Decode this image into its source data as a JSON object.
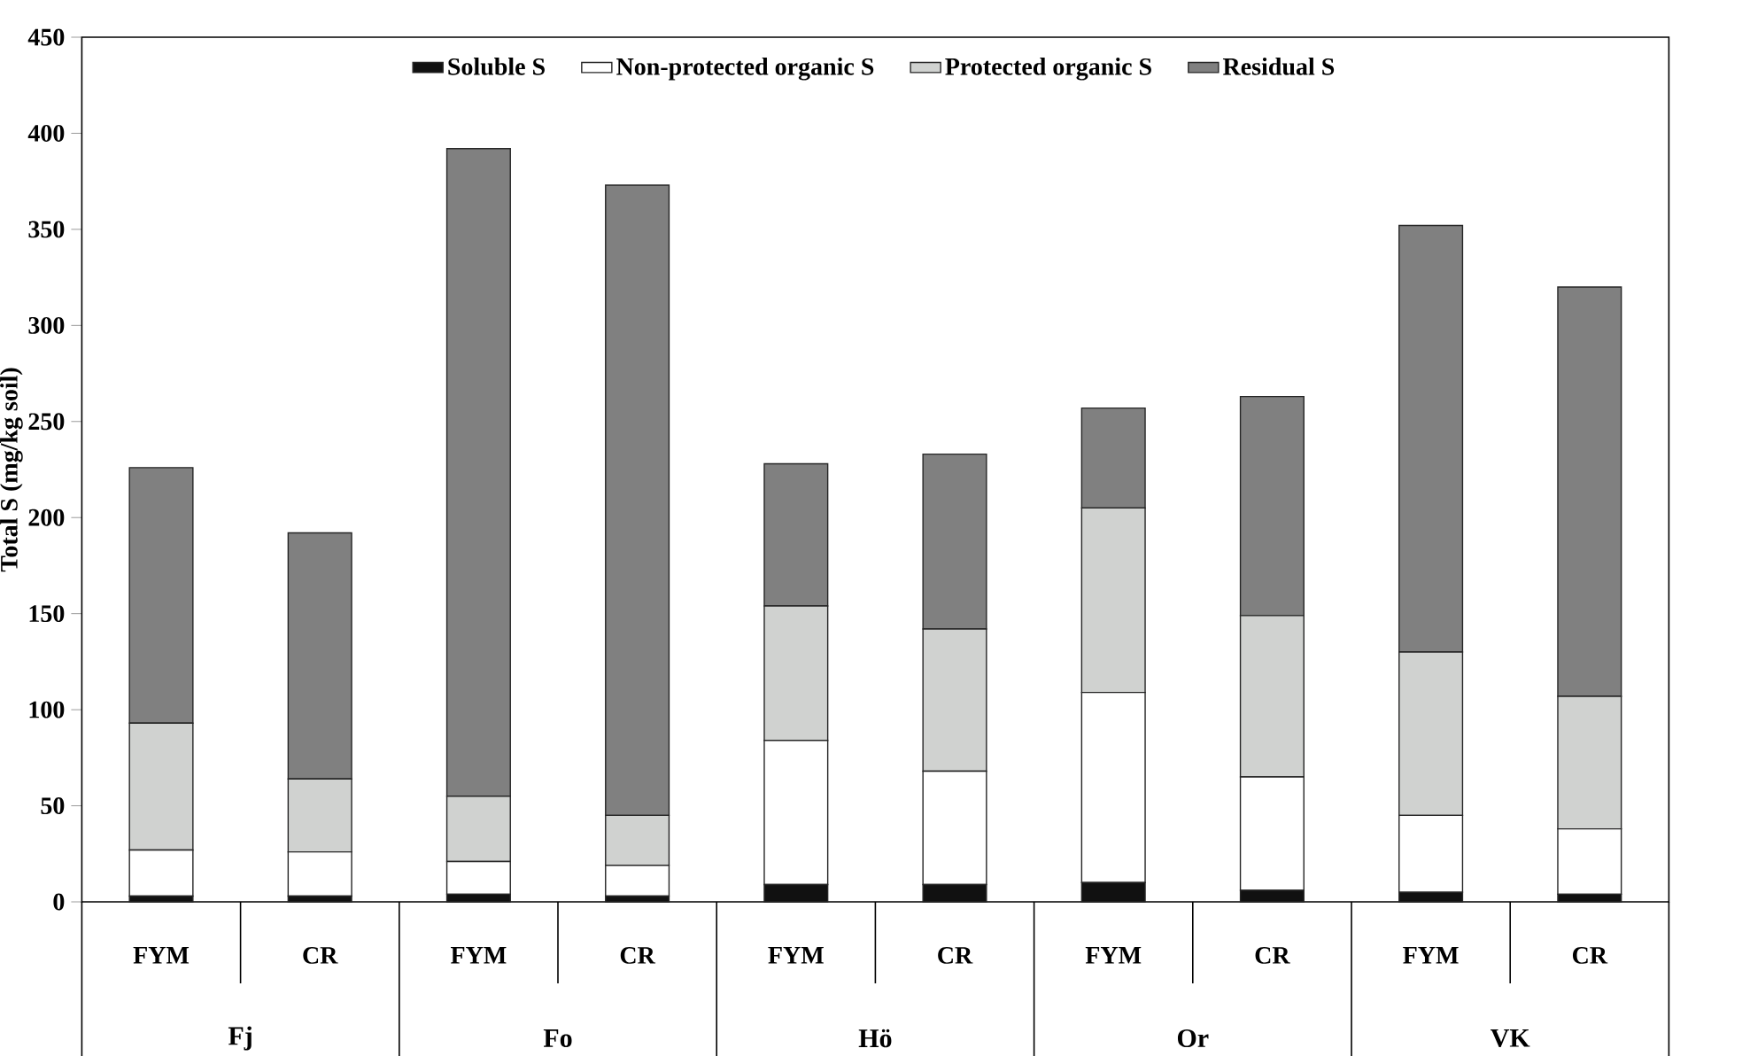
{
  "chart_data": {
    "type": "bar",
    "stacked": true,
    "ylabel": "Total S (mg/kg soil)",
    "categories": [
      "FYM",
      "CR",
      "FYM",
      "CR",
      "FYM",
      "CR",
      "FYM",
      "CR",
      "FYM",
      "CR"
    ],
    "annotations": [
      "Fj",
      "Fo",
      "Hö",
      "Or",
      "VK"
    ],
    "series": [
      {
        "name": "Soluble S",
        "color": "#111111",
        "values": [
          3,
          3,
          4,
          3,
          9,
          9,
          10,
          6,
          5,
          4
        ]
      },
      {
        "name": "Non-protected organic S",
        "color": "#ffffff",
        "values": [
          24,
          23,
          17,
          16,
          75,
          59,
          99,
          59,
          40,
          34
        ]
      },
      {
        "name": "Protected organic S",
        "color": "#d0d2d0",
        "values": [
          66,
          38,
          34,
          26,
          70,
          74,
          96,
          84,
          85,
          69
        ]
      },
      {
        "name": "Residual S",
        "color": "#808080",
        "values": [
          133,
          128,
          337,
          328,
          74,
          91,
          52,
          114,
          222,
          213
        ]
      }
    ],
    "ylim": [
      0,
      450
    ],
    "yticks": [
      0,
      50,
      100,
      150,
      200,
      250,
      300,
      350,
      400,
      450
    ],
    "legend": "top"
  }
}
